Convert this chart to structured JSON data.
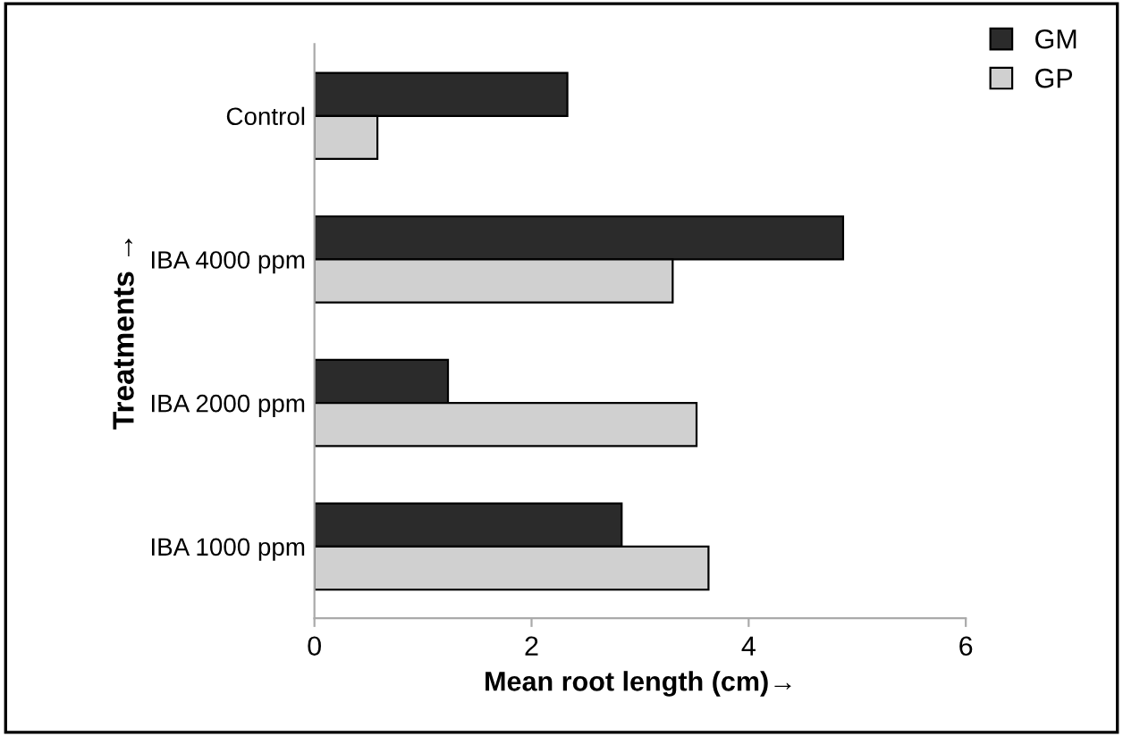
{
  "chart_data": {
    "type": "bar",
    "orientation": "horizontal",
    "xlabel": "Mean root length (cm)→",
    "ylabel": "Treatments →",
    "categories": [
      "Control",
      "IBA 4000 ppm",
      "IBA 2000 ppm",
      "IBA 1000 ppm"
    ],
    "series": [
      {
        "name": "GM",
        "color": "#2b2b2b",
        "values": [
          2.33,
          4.87,
          1.23,
          2.83
        ]
      },
      {
        "name": "GP",
        "color": "#d0d0d0",
        "values": [
          0.58,
          3.3,
          3.52,
          3.63
        ]
      }
    ],
    "xlim": [
      0,
      6
    ],
    "xticks": [
      0,
      2,
      4,
      6
    ],
    "grid": false,
    "legend": "top right"
  }
}
